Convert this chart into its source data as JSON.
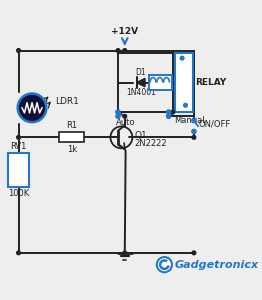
{
  "bg_color": "#eeeeee",
  "wire_color": "#222222",
  "blue_color": "#2277cc",
  "light_blue": "#3399dd",
  "vcc_label": "+12V",
  "ldr_label": "LDR1",
  "r1_label": "R1",
  "r1_val": "1k",
  "rv1_label": "RV1",
  "rv1_val": "100K",
  "q1_label": "Q1",
  "q1_val": "2N2222",
  "d1_label": "D1",
  "d1_val": "1N4001",
  "relay_label": "RELAY",
  "auto_label": "Auto",
  "manual_label": "Manual",
  "onoff_label": "ON/OFF",
  "brand": "Gadgetronicx",
  "figsize": [
    2.62,
    3.0
  ],
  "dpi": 100
}
